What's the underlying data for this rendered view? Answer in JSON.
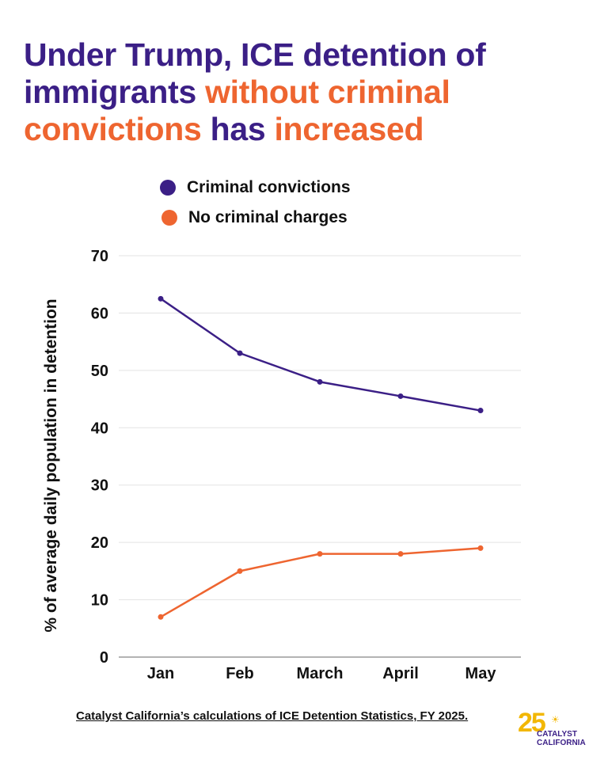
{
  "title": {
    "parts": [
      {
        "text": "Under Trump, ICE detention of immigrants ",
        "highlight": false
      },
      {
        "text": "without criminal convictions",
        "highlight": true
      },
      {
        "text": " has ",
        "highlight": false
      },
      {
        "text": "increased",
        "highlight": true
      }
    ]
  },
  "colors": {
    "primary": "#3b1f86",
    "accent": "#ee6530",
    "grid": "#e3e3e3",
    "axis": "#9a9a9a",
    "text": "#111111"
  },
  "legend": [
    {
      "label": "Criminal convictions",
      "color": "#3b1f86"
    },
    {
      "label": "No criminal charges",
      "color": "#ee6530"
    }
  ],
  "chart_data": {
    "type": "line",
    "title": "Under Trump, ICE detention of immigrants without criminal convictions has increased",
    "xlabel": "",
    "ylabel": "% of average daily population in detention",
    "categories": [
      "Jan",
      "Feb",
      "March",
      "April",
      "May"
    ],
    "ylim": [
      0,
      70
    ],
    "yticks": [
      0,
      10,
      20,
      30,
      40,
      50,
      60,
      70
    ],
    "grid": true,
    "legend_position": "top",
    "series": [
      {
        "name": "Criminal convictions",
        "color": "#3b1f86",
        "values": [
          62.5,
          53,
          48,
          45.5,
          43
        ]
      },
      {
        "name": "No criminal charges",
        "color": "#ee6530",
        "values": [
          7,
          15,
          18,
          18,
          19
        ]
      }
    ]
  },
  "source": "Catalyst California’s calculations of ICE Detention Statistics, FY 2025.",
  "logo": {
    "number": "25",
    "sun": "☀",
    "line1": "CATALYST",
    "line2": "CALIFORNIA"
  }
}
